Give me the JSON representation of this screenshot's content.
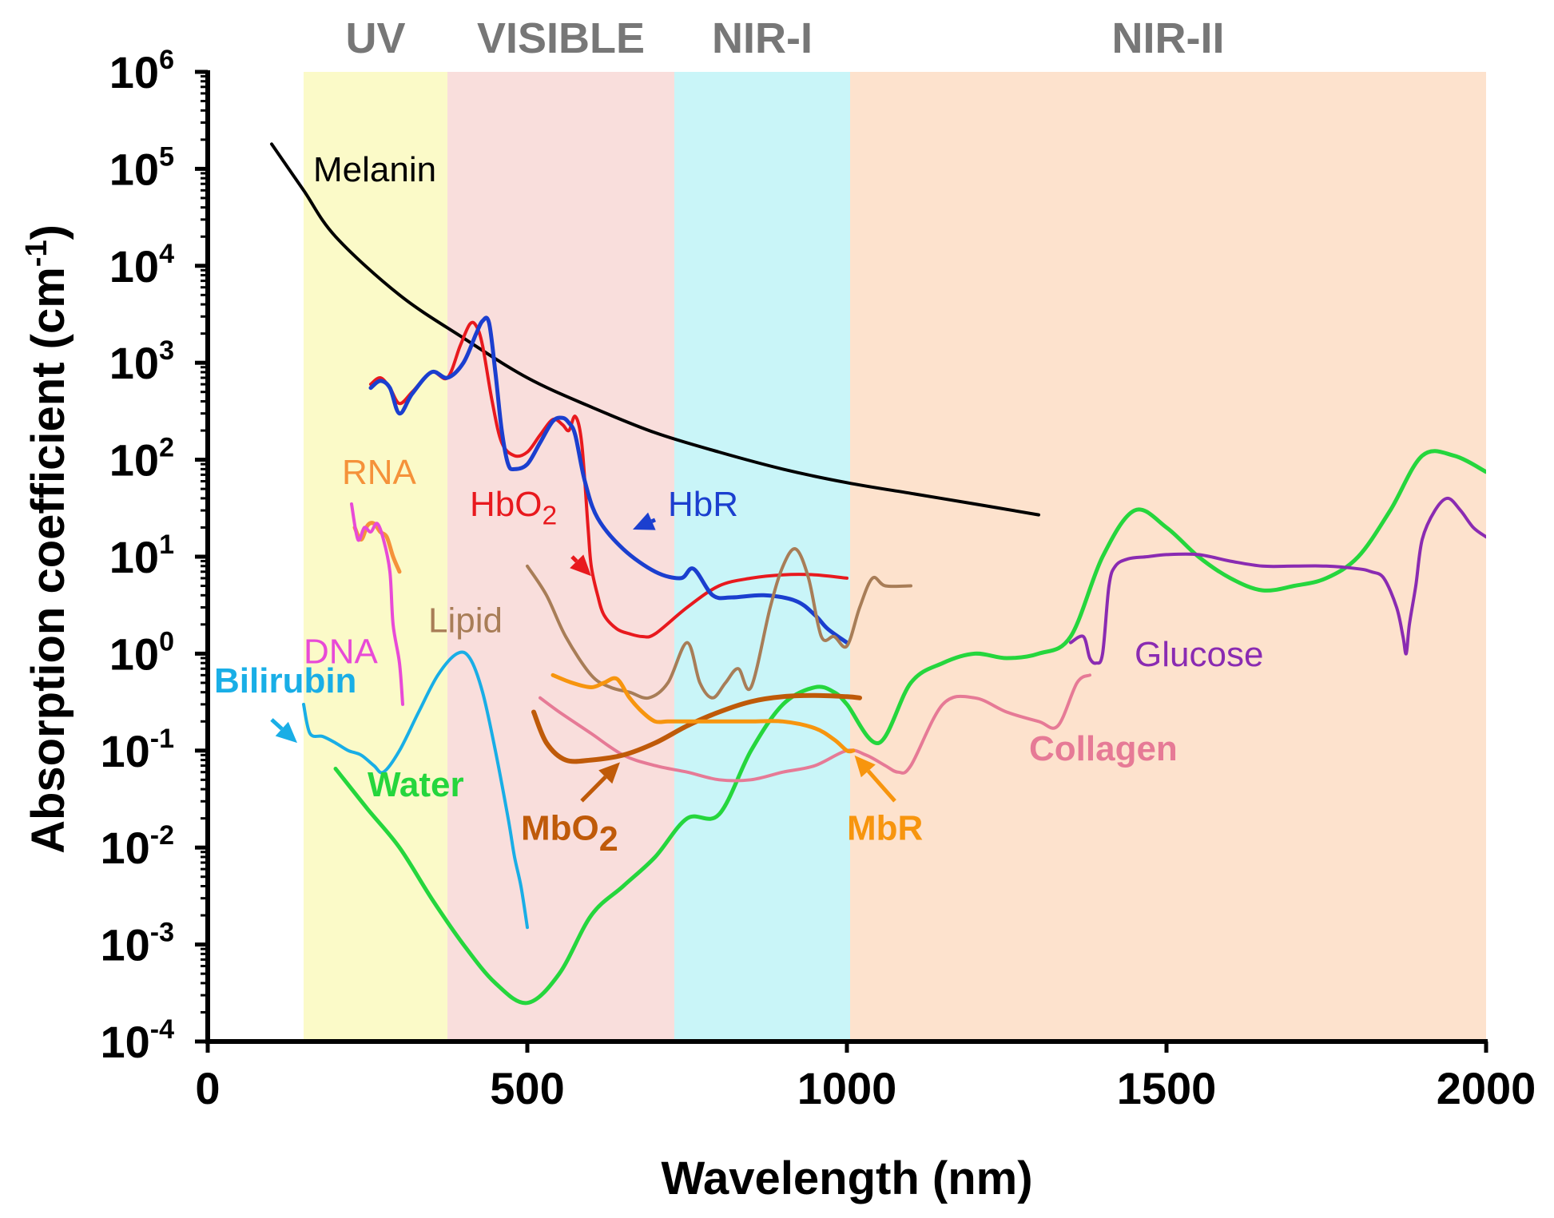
{
  "chart_data": {
    "type": "line",
    "yscale": "log",
    "xlabel": "Wavelength (nm)",
    "ylabel_main": "Absorption coefficient (cm",
    "ylabel_sup": "-1",
    "ylabel_close": ")",
    "xlim": [
      0,
      2000
    ],
    "ylim_exp": [
      -4,
      6
    ],
    "xticks": [
      0,
      500,
      1000,
      1500,
      2000
    ],
    "xtick_labels": [
      "0",
      "500",
      "1000",
      "1500",
      "2000"
    ],
    "yticks_exp": [
      -4,
      -3,
      -2,
      -1,
      0,
      1,
      2,
      3,
      4,
      5,
      6
    ],
    "ytick_base": "10",
    "ytick_exp_labels": [
      "-4",
      "-3",
      "-2",
      "-1",
      "0",
      "1",
      "2",
      "3",
      "4",
      "5",
      "6"
    ],
    "regions": [
      {
        "name": "UV",
        "x0": 150,
        "x1": 375,
        "color": "#fbfac8"
      },
      {
        "name": "VISIBLE",
        "x0": 375,
        "x1": 730,
        "color": "#f9dedc"
      },
      {
        "name": "NIR-I",
        "x0": 730,
        "x1": 1005,
        "color": "#c9f5f8"
      },
      {
        "name": "NIR-II",
        "x0": 1005,
        "x1": 2000,
        "color": "#fde2cd"
      }
    ],
    "series": [
      {
        "name": "Melanin",
        "color": "#000000",
        "width": 4,
        "x": [
          100,
          150,
          200,
          300,
          400,
          500,
          600,
          700,
          800,
          900,
          1000,
          1100,
          1200,
          1300
        ],
        "y": [
          180000,
          60000,
          20000,
          5000,
          1800,
          700,
          350,
          190,
          120,
          80,
          58,
          45,
          35,
          27
        ]
      },
      {
        "name": "HbO2",
        "color": "#e8191e",
        "width": 4,
        "x": [
          255,
          270,
          285,
          300,
          320,
          350,
          375,
          395,
          410,
          420,
          430,
          445,
          460,
          480,
          500,
          520,
          540,
          555,
          565,
          575,
          585,
          595,
          600,
          610,
          620,
          640,
          660,
          680,
          700,
          750,
          800,
          850,
          900,
          950,
          1000
        ],
        "y": [
          600,
          700,
          550,
          380,
          500,
          800,
          700,
          1500,
          2500,
          2400,
          1500,
          400,
          150,
          110,
          120,
          180,
          260,
          230,
          200,
          280,
          150,
          20,
          8,
          4,
          2.5,
          1.8,
          1.6,
          1.5,
          1.6,
          3,
          5,
          6,
          6.5,
          6.5,
          6
        ]
      },
      {
        "name": "HbR",
        "color": "#1b3fcf",
        "width": 5,
        "x": [
          255,
          270,
          285,
          300,
          320,
          350,
          375,
          400,
          420,
          430,
          440,
          450,
          460,
          470,
          480,
          500,
          520,
          540,
          555,
          565,
          575,
          590,
          610,
          650,
          700,
          740,
          760,
          790,
          820,
          870,
          920,
          950,
          970,
          1000
        ],
        "y": [
          550,
          650,
          550,
          300,
          480,
          800,
          700,
          1000,
          2000,
          2700,
          2600,
          800,
          200,
          90,
          80,
          90,
          150,
          250,
          270,
          240,
          180,
          60,
          25,
          12,
          7,
          6,
          7.5,
          4,
          3.8,
          4,
          3.5,
          2.5,
          1.8,
          1.3
        ]
      },
      {
        "name": "RNA",
        "color": "#f5923a",
        "width": 5,
        "x": [
          230,
          240,
          250,
          260,
          270,
          280,
          290,
          300
        ],
        "y": [
          20,
          15,
          21,
          22,
          18,
          16,
          10,
          7
        ]
      },
      {
        "name": "DNA",
        "color": "#e84ad7",
        "width": 4,
        "x": [
          225,
          235,
          245,
          255,
          265,
          275,
          285,
          290,
          300,
          305
        ],
        "y": [
          35,
          15,
          20,
          18,
          22,
          15,
          7,
          2,
          0.8,
          0.3
        ]
      },
      {
        "name": "Bilirubin",
        "color": "#19aee6",
        "width": 4,
        "x": [
          150,
          160,
          180,
          200,
          220,
          240,
          260,
          275,
          300,
          330,
          360,
          390,
          410,
          430,
          450,
          470,
          480,
          490,
          500
        ],
        "y": [
          0.3,
          0.15,
          0.14,
          0.12,
          0.1,
          0.09,
          0.07,
          0.06,
          0.1,
          0.25,
          0.6,
          1.0,
          0.9,
          0.4,
          0.1,
          0.02,
          0.008,
          0.004,
          0.0015
        ]
      },
      {
        "name": "Water",
        "color": "#25d63d",
        "width": 5,
        "x": [
          200,
          250,
          300,
          350,
          400,
          450,
          500,
          550,
          600,
          650,
          700,
          750,
          800,
          850,
          900,
          950,
          980,
          1000,
          1050,
          1100,
          1150,
          1200,
          1250,
          1300,
          1350,
          1400,
          1450,
          1500,
          1550,
          1600,
          1650,
          1700,
          1750,
          1800,
          1850,
          1900,
          1950,
          2000
        ],
        "y": [
          0.065,
          0.025,
          0.01,
          0.003,
          0.001,
          0.0004,
          0.00025,
          0.0005,
          0.002,
          0.004,
          0.008,
          0.02,
          0.022,
          0.1,
          0.3,
          0.45,
          0.4,
          0.3,
          0.12,
          0.5,
          0.8,
          1,
          0.9,
          1.0,
          1.5,
          10,
          30,
          20,
          10,
          6,
          4.5,
          5,
          6,
          10,
          30,
          110,
          110,
          75
        ]
      },
      {
        "name": "Lipid",
        "color": "#a87d57",
        "width": 4,
        "x": [
          500,
          530,
          560,
          600,
          630,
          660,
          690,
          720,
          750,
          770,
          790,
          810,
          830,
          850,
          880,
          900,
          920,
          940,
          960,
          980,
          1000,
          1020,
          1040,
          1060,
          1100
        ],
        "y": [
          8,
          4,
          1.5,
          0.6,
          0.45,
          0.4,
          0.35,
          0.5,
          1.3,
          0.5,
          0.35,
          0.5,
          0.7,
          0.45,
          3,
          8,
          12,
          6,
          1.5,
          1.5,
          1.2,
          3,
          6,
          5,
          5
        ]
      },
      {
        "name": "Glucose",
        "color": "#8a2bb2",
        "width": 4,
        "x": [
          1350,
          1370,
          1380,
          1390,
          1400,
          1410,
          1420,
          1440,
          1470,
          1500,
          1550,
          1600,
          1650,
          1700,
          1750,
          1800,
          1820,
          1840,
          1860,
          1870,
          1875,
          1880,
          1890,
          1900,
          1920,
          1940,
          1960,
          1980,
          2000
        ],
        "y": [
          1.3,
          1.5,
          0.9,
          0.8,
          1.0,
          5,
          8,
          9.5,
          10,
          10.5,
          10.5,
          9,
          8,
          8,
          8,
          7.5,
          7,
          6,
          3,
          1.5,
          1.0,
          2,
          5,
          15,
          30,
          40,
          30,
          20,
          16
        ]
      },
      {
        "name": "Collagen",
        "color": "#e67a96",
        "width": 4,
        "x": [
          520,
          550,
          600,
          650,
          700,
          750,
          800,
          850,
          900,
          950,
          1000,
          1030,
          1060,
          1080,
          1100,
          1150,
          1200,
          1250,
          1300,
          1330,
          1360,
          1380
        ],
        "y": [
          0.35,
          0.25,
          0.15,
          0.09,
          0.07,
          0.06,
          0.05,
          0.05,
          0.06,
          0.07,
          0.1,
          0.09,
          0.07,
          0.06,
          0.07,
          0.3,
          0.35,
          0.25,
          0.2,
          0.18,
          0.5,
          0.6
        ]
      },
      {
        "name": "MbO2",
        "color": "#bf5a09",
        "width": 6,
        "x": [
          510,
          530,
          560,
          600,
          650,
          700,
          750,
          800,
          850,
          900,
          950,
          1000,
          1020
        ],
        "y": [
          0.25,
          0.12,
          0.08,
          0.08,
          0.09,
          0.12,
          0.18,
          0.25,
          0.32,
          0.36,
          0.37,
          0.36,
          0.35
        ]
      },
      {
        "name": "MbR",
        "color": "#f7950e",
        "width": 5,
        "x": [
          540,
          570,
          600,
          620,
          640,
          660,
          680,
          700,
          720,
          750,
          800,
          850,
          900,
          950,
          980,
          1000,
          1010
        ],
        "y": [
          0.6,
          0.5,
          0.45,
          0.5,
          0.55,
          0.35,
          0.25,
          0.2,
          0.2,
          0.2,
          0.2,
          0.2,
          0.2,
          0.17,
          0.13,
          0.1,
          0.1
        ]
      }
    ],
    "annotations": [
      {
        "text": "Melanin",
        "x": 165,
        "y_exp": 4.87,
        "color": "#000000",
        "size": 44,
        "weight": "normal"
      },
      {
        "text": "HbO",
        "sub": "2",
        "x": 410,
        "y_exp": 1.42,
        "color": "#e8191e",
        "size": 42,
        "weight": "normal"
      },
      {
        "text": "HbR",
        "x": 720,
        "y_exp": 1.42,
        "color": "#1b3fcf",
        "size": 42,
        "weight": "normal"
      },
      {
        "text": "RNA",
        "x": 210,
        "y_exp": 1.75,
        "color": "#f5923a",
        "size": 40,
        "weight": "normal"
      },
      {
        "text": "Lipid",
        "x": 345,
        "y_exp": 0.22,
        "color": "#a87d57",
        "size": 40,
        "weight": "normal"
      },
      {
        "text": "DNA",
        "x": 150,
        "y_exp": -0.1,
        "color": "#e84ad7",
        "size": 40,
        "weight": "normal"
      },
      {
        "text": "Bilirubin",
        "x": 10,
        "y_exp": -0.4,
        "color": "#19aee6",
        "size": 40,
        "weight": "bold"
      },
      {
        "text": "Water",
        "x": 250,
        "y_exp": -1.47,
        "color": "#25d63d",
        "size": 40,
        "weight": "bold"
      },
      {
        "text": "Glucose",
        "x": 1450,
        "y_exp": -0.13,
        "color": "#8a2bb2",
        "size": 40,
        "weight": "normal"
      },
      {
        "text": "Collagen",
        "x": 1285,
        "y_exp": -1.1,
        "color": "#e67a96",
        "size": 54,
        "weight": "bold"
      },
      {
        "text": "MbO",
        "sub": "2",
        "x": 490,
        "y_exp": -1.92,
        "color": "#bf5a09",
        "size": 54,
        "weight": "bold"
      },
      {
        "text": "MbR",
        "x": 1000,
        "y_exp": -1.92,
        "color": "#f7950e",
        "size": 54,
        "weight": "bold"
      }
    ],
    "arrows": [
      {
        "name": "bilirubin-arrow",
        "from": [
          100,
          -0.68
        ],
        "to": [
          140,
          -0.92
        ],
        "color": "#19aee6"
      },
      {
        "name": "hbo2-arrow",
        "from": [
          570,
          1.0
        ],
        "to": [
          600,
          0.8
        ],
        "color": "#e8191e"
      },
      {
        "name": "hbr-arrow",
        "from": [
          700,
          1.38
        ],
        "to": [
          665,
          1.28
        ],
        "color": "#1b3fcf"
      },
      {
        "name": "mbo2-arrow",
        "from": [
          585,
          -1.52
        ],
        "to": [
          645,
          -1.12
        ],
        "color": "#bf5a09"
      },
      {
        "name": "mbr-arrow",
        "from": [
          1075,
          -1.52
        ],
        "to": [
          1012,
          -1.05
        ],
        "color": "#f7950e"
      }
    ]
  }
}
